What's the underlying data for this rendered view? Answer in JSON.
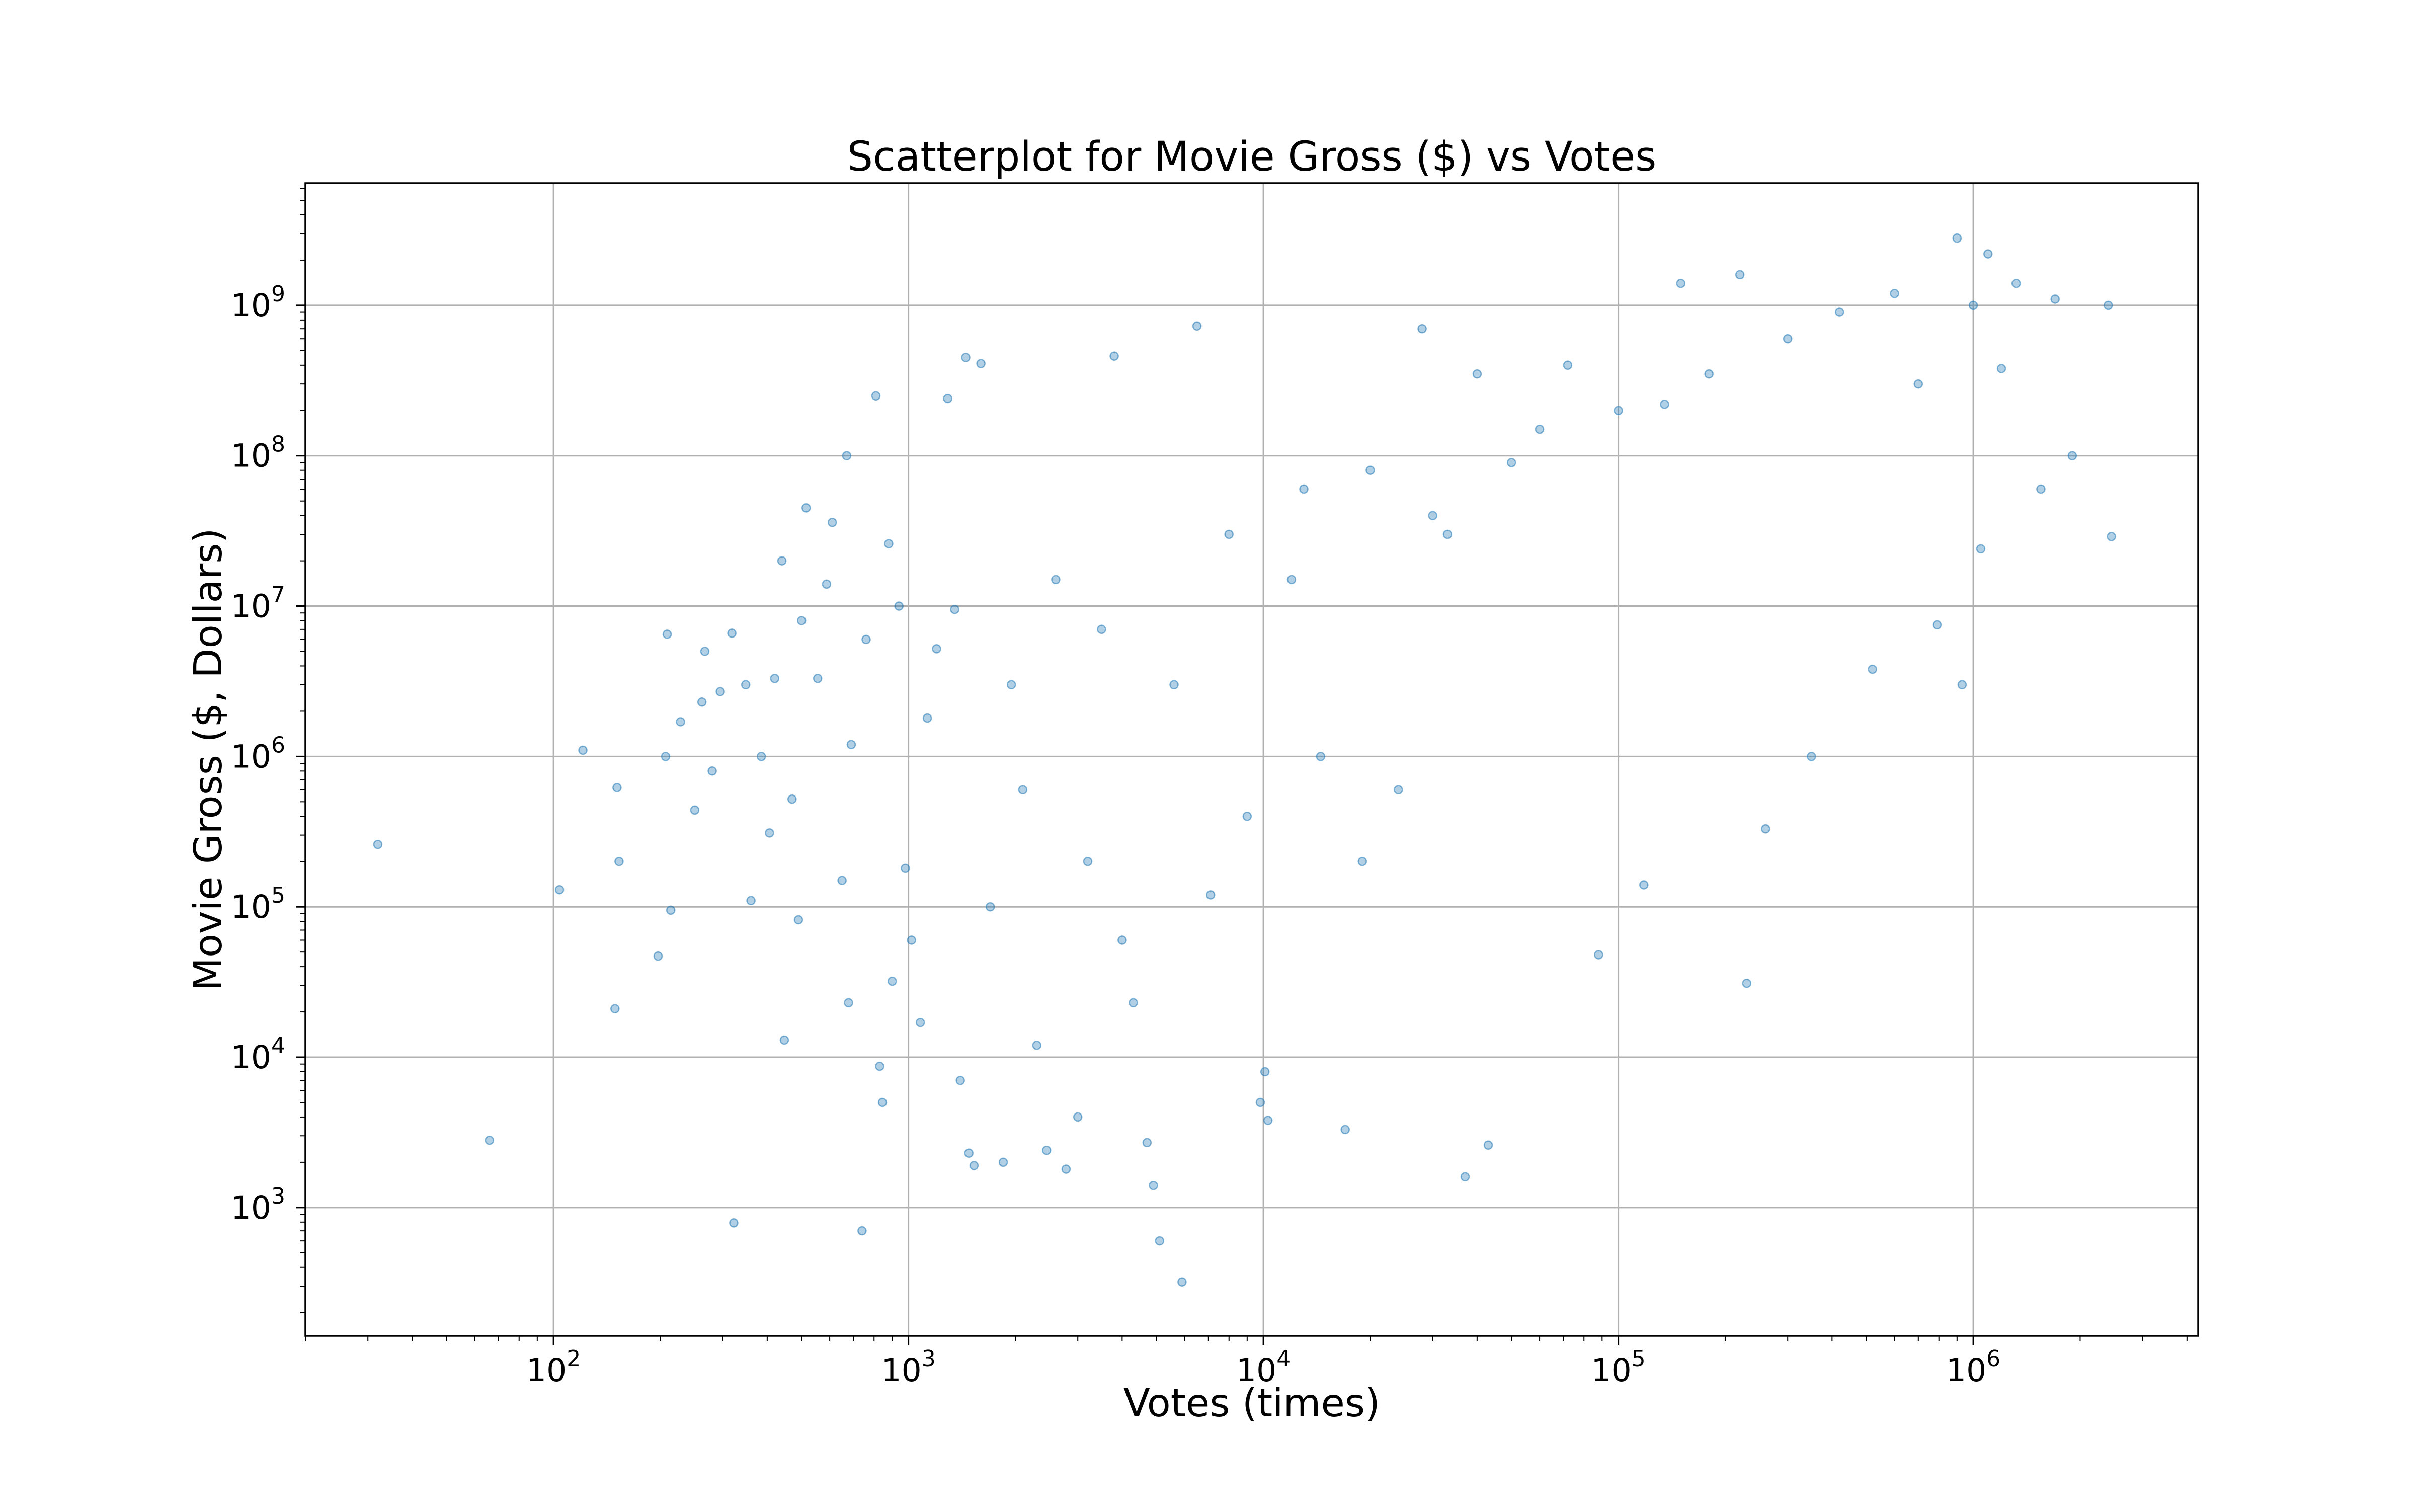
{
  "chart_data": {
    "type": "scatter",
    "title": "Scatterplot for Movie Gross ($) vs Votes",
    "xlabel": "Votes (times)",
    "ylabel": "Movie Gross ($, Dollars)",
    "x_scale": "log",
    "y_scale": "log",
    "xlim": [
      20,
      4300000
    ],
    "ylim": [
      140,
      6500000000
    ],
    "grid": true,
    "marker_color": "#1f77b4",
    "x_ticks": [
      {
        "base": "10",
        "exp": "2"
      },
      {
        "base": "10",
        "exp": "3"
      },
      {
        "base": "10",
        "exp": "4"
      },
      {
        "base": "10",
        "exp": "5"
      },
      {
        "base": "10",
        "exp": "6"
      }
    ],
    "y_ticks": [
      {
        "base": "10",
        "exp": "3"
      },
      {
        "base": "10",
        "exp": "4"
      },
      {
        "base": "10",
        "exp": "5"
      },
      {
        "base": "10",
        "exp": "6"
      },
      {
        "base": "10",
        "exp": "7"
      },
      {
        "base": "10",
        "exp": "8"
      },
      {
        "base": "10",
        "exp": "9"
      }
    ],
    "series": [
      {
        "points": [
          [
            32,
            260000
          ],
          [
            66,
            2800
          ],
          [
            104,
            130000
          ],
          [
            121,
            1100000
          ],
          [
            149,
            21000
          ],
          [
            151,
            620000
          ],
          [
            153,
            200000
          ],
          [
            197,
            47000
          ],
          [
            207,
            1000000
          ],
          [
            209,
            6500000
          ],
          [
            214,
            95000
          ],
          [
            228,
            1700000
          ],
          [
            250,
            440000
          ],
          [
            262,
            2300000
          ],
          [
            267,
            5000000
          ],
          [
            280,
            800000
          ],
          [
            295,
            2700000
          ],
          [
            318,
            6600000
          ],
          [
            322,
            790
          ],
          [
            348,
            3000000
          ],
          [
            360,
            110000
          ],
          [
            385,
            1000000
          ],
          [
            406,
            310000
          ],
          [
            420,
            3300000
          ],
          [
            440,
            20000000
          ],
          [
            447,
            13000
          ],
          [
            470,
            520000
          ],
          [
            490,
            82000
          ],
          [
            500,
            8000000
          ],
          [
            515,
            45000000
          ],
          [
            555,
            3300000
          ],
          [
            588,
            14000000
          ],
          [
            610,
            36000000
          ],
          [
            650,
            150000
          ],
          [
            670,
            100000000
          ],
          [
            678,
            23000
          ],
          [
            690,
            1200000
          ],
          [
            740,
            700
          ],
          [
            760,
            6000000
          ],
          [
            810,
            250000000
          ],
          [
            830,
            8700
          ],
          [
            845,
            5000
          ],
          [
            880,
            26000000
          ],
          [
            900,
            32000
          ],
          [
            940,
            10000000
          ],
          [
            980,
            180000
          ],
          [
            1020,
            60000
          ],
          [
            1080,
            17000
          ],
          [
            1130,
            1800000
          ],
          [
            1200,
            5200000
          ],
          [
            1290,
            240000000
          ],
          [
            1350,
            9500000
          ],
          [
            1400,
            7000
          ],
          [
            1450,
            450000000
          ],
          [
            1480,
            2300
          ],
          [
            1530,
            1900
          ],
          [
            1600,
            410000000
          ],
          [
            1700,
            100000
          ],
          [
            1850,
            2000
          ],
          [
            1950,
            3000000
          ],
          [
            2100,
            600000
          ],
          [
            2300,
            12000
          ],
          [
            2450,
            2400
          ],
          [
            2600,
            15000000
          ],
          [
            2780,
            1800
          ],
          [
            3000,
            4000
          ],
          [
            3200,
            200000
          ],
          [
            3500,
            7000000
          ],
          [
            3800,
            460000000
          ],
          [
            4000,
            60000
          ],
          [
            4300,
            23000
          ],
          [
            4700,
            2700
          ],
          [
            4900,
            1400
          ],
          [
            5100,
            600
          ],
          [
            5600,
            3000000
          ],
          [
            5900,
            320
          ],
          [
            6500,
            730000000
          ],
          [
            7100,
            120000
          ],
          [
            8000,
            30000000
          ],
          [
            9000,
            400000
          ],
          [
            9800,
            5000
          ],
          [
            10100,
            8000
          ],
          [
            10300,
            3800
          ],
          [
            12000,
            15000000
          ],
          [
            13000,
            60000000
          ],
          [
            14500,
            1000000
          ],
          [
            17000,
            3300
          ],
          [
            19000,
            200000
          ],
          [
            20000,
            80000000
          ],
          [
            24000,
            600000
          ],
          [
            28000,
            700000000
          ],
          [
            30000,
            40000000
          ],
          [
            33000,
            30000000
          ],
          [
            37000,
            1600
          ],
          [
            40000,
            350000000
          ],
          [
            43000,
            2600
          ],
          [
            50000,
            90000000
          ],
          [
            60000,
            150000000
          ],
          [
            72000,
            400000000
          ],
          [
            88000,
            48000
          ],
          [
            100000,
            200000000
          ],
          [
            118000,
            140000
          ],
          [
            135000,
            220000000
          ],
          [
            150000,
            1400000000
          ],
          [
            180000,
            350000000
          ],
          [
            220000,
            1600000000
          ],
          [
            230000,
            31000
          ],
          [
            260000,
            330000
          ],
          [
            300000,
            600000000
          ],
          [
            350000,
            1000000
          ],
          [
            420000,
            900000000
          ],
          [
            520000,
            3800000
          ],
          [
            600000,
            1200000000
          ],
          [
            700000,
            300000000
          ],
          [
            790000,
            7500000
          ],
          [
            900000,
            2800000000
          ],
          [
            930000,
            3000000
          ],
          [
            1000000,
            1000000000
          ],
          [
            1050000,
            24000000
          ],
          [
            1100000,
            2200000000
          ],
          [
            1200000,
            380000000
          ],
          [
            1320000,
            1400000000
          ],
          [
            1550000,
            60000000
          ],
          [
            1700000,
            1100000000
          ],
          [
            1900000,
            100000000
          ],
          [
            2400000,
            1000000000
          ],
          [
            2450000,
            29000000
          ]
        ]
      }
    ]
  }
}
